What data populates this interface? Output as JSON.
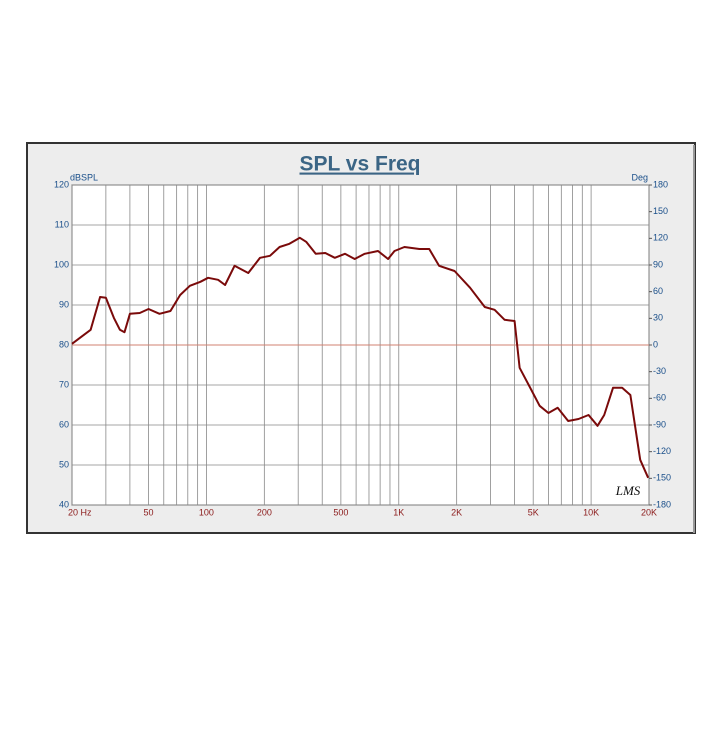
{
  "chart_data": {
    "type": "line",
    "title": "SPL vs Freq",
    "y_label": "dBSPL",
    "y2_label": "Deg",
    "logo": "LMS",
    "x": [
      20,
      22,
      25,
      28,
      30,
      33,
      35.5,
      37.5,
      40,
      45,
      50,
      57,
      65,
      73,
      82,
      93,
      102,
      115,
      125,
      140,
      165,
      190,
      214,
      240,
      270,
      306,
      330,
      370,
      415,
      465,
      525,
      590,
      665,
      780,
      880,
      950,
      1070,
      1280,
      1440,
      1620,
      1950,
      2350,
      2800,
      3150,
      3550,
      4000,
      4250,
      4800,
      5400,
      6000,
      6700,
      7600,
      8600,
      9700,
      10800,
      11700,
      13000,
      14500,
      16000,
      18000,
      19800
    ],
    "series": [
      {
        "name": "SPL",
        "color": "#7a0a0a",
        "values": [
          80.3,
          81.8,
          83.8,
          92,
          91.8,
          86.8,
          83.8,
          83.2,
          87.8,
          88,
          89,
          87.8,
          88.5,
          92.5,
          94.8,
          95.8,
          96.8,
          96.3,
          95,
          99.8,
          98,
          101.8,
          102.3,
          104.5,
          105.3,
          106.8,
          105.8,
          102.8,
          103,
          101.8,
          102.8,
          101.5,
          102.8,
          103.5,
          101.5,
          103.5,
          104.5,
          104,
          104,
          99.8,
          98.5,
          94.3,
          89.5,
          88.8,
          86.3,
          86,
          74.3,
          69.5,
          64.8,
          63,
          64.3,
          61,
          61.5,
          62.5,
          59.8,
          62.5,
          69.3,
          69.3,
          67.5,
          51.3,
          46.8
        ]
      }
    ],
    "xscale": "log",
    "xlim": [
      20,
      20000
    ],
    "xticks": [
      {
        "value": 20,
        "label": "20  Hz"
      },
      50,
      100,
      200,
      500,
      {
        "value": 1000,
        "label": "1K"
      },
      {
        "value": 2000,
        "label": "2K"
      },
      {
        "value": 5000,
        "label": "5K"
      },
      {
        "value": 10000,
        "label": "10K"
      },
      {
        "value": 20000,
        "label": "20K"
      }
    ],
    "xgrid": [
      20,
      30,
      40,
      50,
      60,
      70,
      80,
      90,
      100,
      200,
      300,
      400,
      500,
      600,
      700,
      800,
      900,
      1000,
      2000,
      3000,
      4000,
      5000,
      6000,
      7000,
      8000,
      9000,
      10000,
      20000
    ],
    "ylim": [
      40,
      120
    ],
    "yticks": [
      40,
      50,
      60,
      70,
      80,
      90,
      100,
      110,
      120
    ],
    "y2lim": [
      -180,
      180
    ],
    "y2ticks": [
      -180,
      -150,
      -120,
      -90,
      -60,
      -30,
      0,
      30,
      60,
      90,
      120,
      150,
      180
    ],
    "reference_line": {
      "axis": "y2",
      "value": 0,
      "color": "#d08070"
    },
    "grid": true
  }
}
